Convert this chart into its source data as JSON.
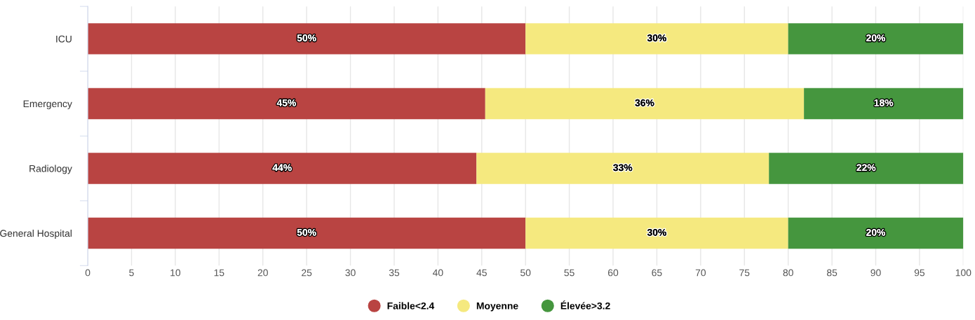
{
  "chart_data": {
    "type": "bar",
    "orientation": "horizontal",
    "stacked": true,
    "categories": [
      "ICU",
      "Emergency",
      "Radiology",
      "General Hospital"
    ],
    "series": [
      {
        "name": "Faible<2.4",
        "color": "#b94442",
        "values": [
          50,
          45.4,
          44.4,
          50
        ],
        "value_labels": [
          "50%",
          "45%",
          "44%",
          "50%"
        ]
      },
      {
        "name": "Moyenne",
        "color": "#f5e97f",
        "values": [
          30,
          36.4,
          33.4,
          30
        ],
        "value_labels": [
          "30%",
          "36%",
          "33%",
          "30%"
        ]
      },
      {
        "name": "Élevée>3.2",
        "color": "#45963e",
        "values": [
          20,
          18.2,
          22.2,
          20
        ],
        "value_labels": [
          "20%",
          "18%",
          "22%",
          "20%"
        ]
      }
    ],
    "xlim": [
      0,
      100
    ],
    "xticks": [
      0,
      5,
      10,
      15,
      20,
      25,
      30,
      35,
      40,
      45,
      50,
      55,
      60,
      65,
      70,
      75,
      80,
      85,
      90,
      95,
      100
    ],
    "grid": "x",
    "legend": "bottom",
    "marker": "circle"
  }
}
